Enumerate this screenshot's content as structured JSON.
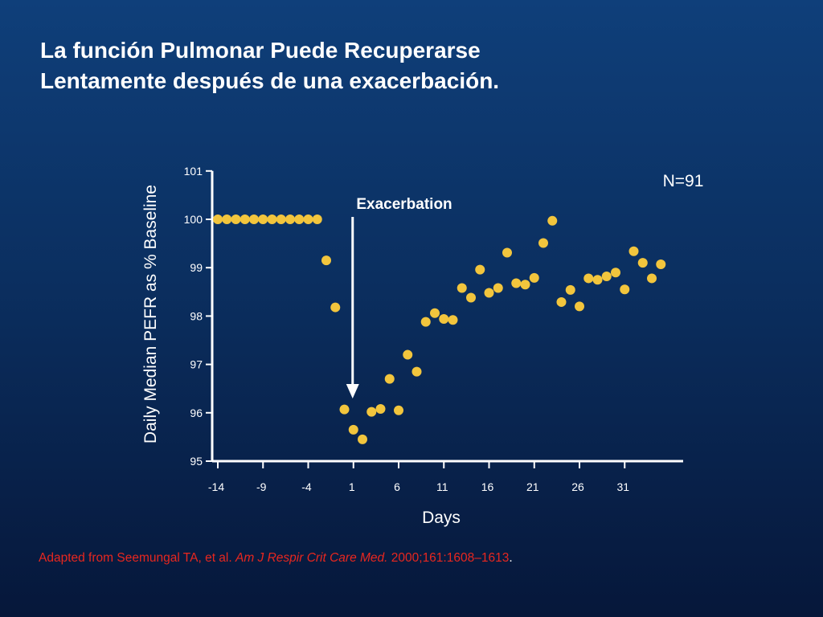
{
  "slide": {
    "title_lines": [
      "La función Pulmonar Puede Recuperarse",
      "Lentamente después de una exacerbación."
    ],
    "citation": {
      "prefix": "Adapted from Seemungal TA, et al. ",
      "journal": "Am J Respir Crit Care Med.",
      "suffix": " 2000;161:1608–1613",
      "end": "."
    }
  },
  "colors": {
    "background_top": "#0f3f7a",
    "background_bottom": "#06173a",
    "title": "#ffffff",
    "citation": "#e8271f",
    "point": "#f2c53d",
    "axis": "#ffffff"
  },
  "chart_data": {
    "type": "scatter",
    "title": "",
    "xlabel": "Days",
    "ylabel": "Daily Median PEFR as % Baseline",
    "xlim": [
      -14,
      39
    ],
    "ylim": [
      95,
      101
    ],
    "xticks": [
      -14,
      -9,
      -4,
      1,
      6,
      11,
      16,
      21,
      26,
      31
    ],
    "yticks": [
      95,
      96,
      97,
      98,
      99,
      100,
      101
    ],
    "grid": false,
    "legend": "none",
    "annotations": {
      "n_label": "N=91",
      "event_label": "Exacerbation",
      "event_x": 1
    },
    "series": [
      {
        "color": "#f2c53d",
        "points": [
          [
            -14,
            100.0
          ],
          [
            -13,
            100.0
          ],
          [
            -12,
            100.0
          ],
          [
            -11,
            100.0
          ],
          [
            -10,
            100.0
          ],
          [
            -9,
            100.0
          ],
          [
            -8,
            100.0
          ],
          [
            -7,
            100.0
          ],
          [
            -6,
            100.0
          ],
          [
            -5,
            100.0
          ],
          [
            -4,
            100.0
          ],
          [
            -3,
            100.0
          ],
          [
            -2,
            99.15
          ],
          [
            -1,
            98.18
          ],
          [
            0,
            96.07
          ],
          [
            1,
            95.65
          ],
          [
            2,
            95.45
          ],
          [
            3,
            96.02
          ],
          [
            4,
            96.08
          ],
          [
            5,
            96.7
          ],
          [
            6,
            96.05
          ],
          [
            7,
            97.2
          ],
          [
            8,
            96.85
          ],
          [
            9,
            97.88
          ],
          [
            10,
            98.06
          ],
          [
            11,
            97.94
          ],
          [
            12,
            97.92
          ],
          [
            13,
            98.58
          ],
          [
            14,
            98.38
          ],
          [
            15,
            98.96
          ],
          [
            16,
            98.48
          ],
          [
            17,
            98.58
          ],
          [
            18,
            99.31
          ],
          [
            19,
            98.68
          ],
          [
            20,
            98.65
          ],
          [
            21,
            98.79
          ],
          [
            22,
            99.51
          ],
          [
            23,
            99.97
          ],
          [
            24,
            98.29
          ],
          [
            25,
            98.54
          ],
          [
            26,
            98.2
          ],
          [
            27,
            98.78
          ],
          [
            28,
            98.75
          ],
          [
            29,
            98.82
          ],
          [
            30,
            98.9
          ],
          [
            31,
            98.55
          ],
          [
            32,
            99.34
          ],
          [
            33,
            99.1
          ],
          [
            34,
            98.78
          ],
          [
            35,
            99.07
          ]
        ]
      }
    ]
  }
}
